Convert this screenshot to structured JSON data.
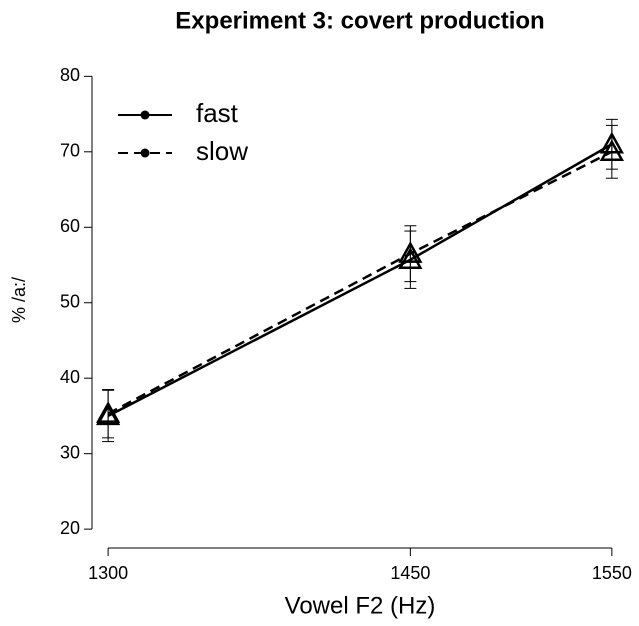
{
  "chart_data": {
    "type": "line",
    "title": "Experiment 3: covert production",
    "x_label": "Vowel F2 (Hz)",
    "y_label": "% /a:/",
    "x": [
      1300,
      1450,
      1550
    ],
    "series": [
      {
        "name": "fast",
        "color": "#000000",
        "dash": "solid",
        "values": [
          35,
          55.7,
          71
        ],
        "errors": [
          3.4,
          3.8,
          3.3
        ]
      },
      {
        "name": "slow",
        "color": "#000000",
        "dash": "dashed",
        "values": [
          35.3,
          56.5,
          70
        ],
        "errors": [
          3.2,
          3.7,
          3.5
        ]
      }
    ],
    "xlim": [
      1292,
      1560
    ],
    "xticks": [
      1300,
      1450,
      1550
    ],
    "ylim": [
      17.5,
      81.9
    ],
    "yticks": [
      20,
      30,
      40,
      50,
      60,
      70,
      80
    ],
    "legend": "top-left"
  }
}
